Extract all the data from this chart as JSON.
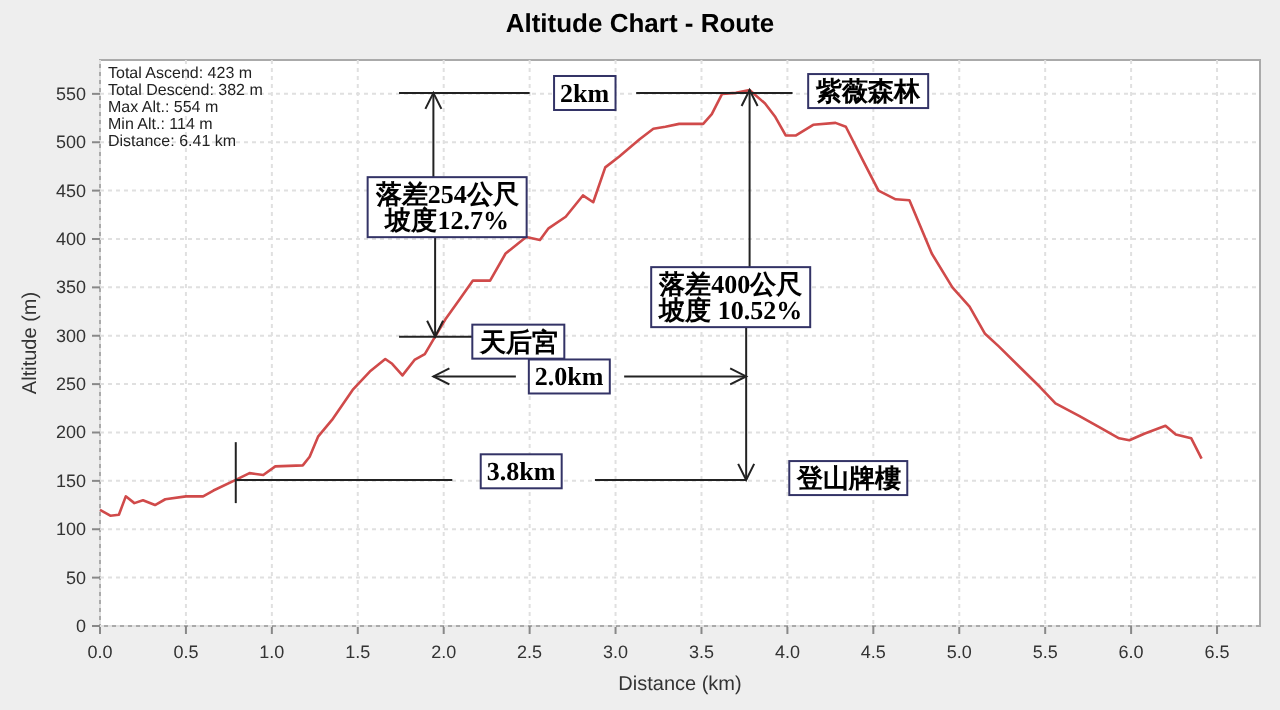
{
  "chart_data": {
    "type": "line",
    "title": "Altitude Chart - Route",
    "xlabel": "Distance (km)",
    "ylabel": "Altitude (m)",
    "xlim": [
      0,
      6.75
    ],
    "ylim": [
      0,
      585
    ],
    "xticks": [
      {
        "value": 0,
        "label": "0.0"
      },
      0.5,
      {
        "value": 1,
        "label": "1.0"
      },
      1.5,
      {
        "value": 2,
        "label": "2.0"
      },
      2.5,
      {
        "value": 3,
        "label": "3.0"
      },
      3.5,
      {
        "value": 4,
        "label": "4.0"
      },
      4.5,
      {
        "value": 5,
        "label": "5.0"
      },
      5.5,
      {
        "value": 6,
        "label": "6.0"
      },
      6.5
    ],
    "yticks": [
      0,
      50,
      100,
      150,
      200,
      250,
      300,
      350,
      400,
      450,
      500,
      550
    ],
    "grid": true,
    "marker": "none",
    "line_style": "solid",
    "x": [
      0.0,
      0.06,
      0.11,
      0.15,
      0.2,
      0.25,
      0.32,
      0.38,
      0.5,
      0.6,
      0.66,
      0.79,
      0.87,
      0.95,
      1.02,
      1.18,
      1.22,
      1.27,
      1.35,
      1.47,
      1.57,
      1.66,
      1.7,
      1.76,
      1.83,
      1.89,
      1.95,
      2.01,
      2.09,
      2.17,
      2.27,
      2.36,
      2.48,
      2.56,
      2.61,
      2.71,
      2.81,
      2.87,
      2.94,
      3.02,
      3.14,
      3.22,
      3.29,
      3.37,
      3.51,
      3.56,
      3.62,
      3.7,
      3.78,
      3.87,
      3.93,
      3.99,
      4.05,
      4.15,
      4.28,
      4.34,
      4.44,
      4.53,
      4.63,
      4.71,
      4.84,
      4.96,
      5.06,
      5.15,
      5.23,
      5.35,
      5.47,
      5.56,
      5.7,
      5.83,
      5.93,
      5.99,
      6.08,
      6.2,
      6.26,
      6.35,
      6.41
    ],
    "series": [
      {
        "color": "#d04a4a",
        "values": [
          120,
          114,
          115,
          134,
          127,
          130,
          125,
          131,
          134,
          134,
          140,
          151,
          158,
          156,
          165,
          166,
          175,
          196,
          213,
          244,
          263,
          276,
          271,
          259,
          275,
          281,
          299,
          317,
          337,
          357,
          357,
          385,
          402,
          399,
          411,
          423,
          445,
          438,
          474,
          485,
          503,
          514,
          516,
          519,
          519,
          529,
          550,
          551,
          554,
          540,
          526,
          507,
          507,
          518,
          520,
          516,
          481,
          450,
          441,
          440,
          385,
          350,
          330,
          302,
          289,
          268,
          247,
          230,
          217,
          204,
          194,
          192,
          199,
          207,
          198,
          194,
          173
        ]
      }
    ],
    "annotations": [
      "Total Ascend: 423 m\nTotal Descend: 382 m\nMax Alt.: 554 m\nMin Alt.: 114 m\nDistance: 6.41 km",
      "2km",
      {
        "text": "落差254公尺坡度12.7%",
        "x": 1.95,
        "y": 299
      },
      "天后宮",
      "2.0km",
      "3.8km",
      "紫薇森林",
      {
        "text": "落差400公尺坡度 10.52%",
        "x": 3.78,
        "y": 554
      },
      "登山牌樓"
    ]
  }
}
